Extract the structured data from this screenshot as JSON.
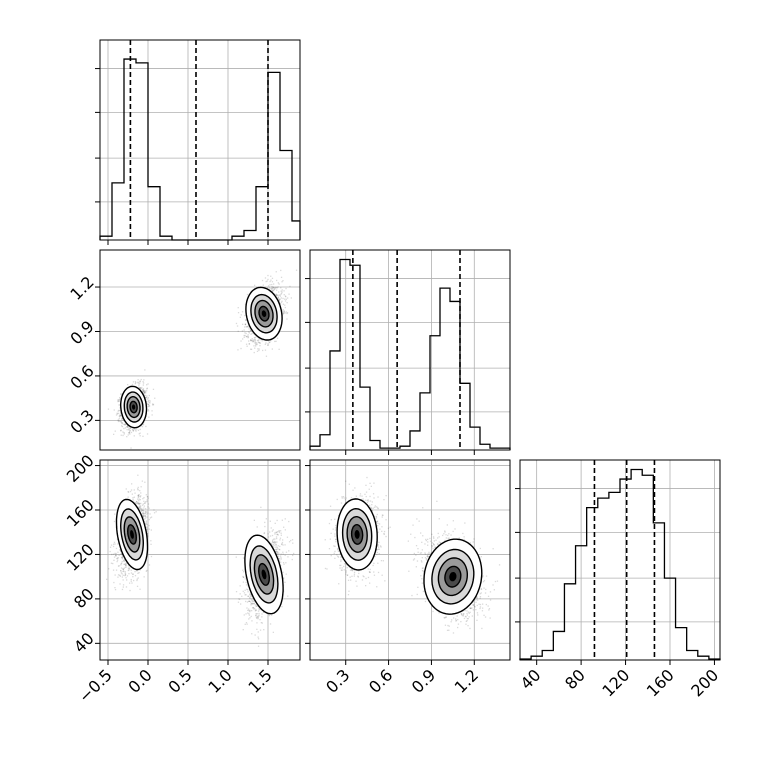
{
  "figure": {
    "type": "corner-plot",
    "colors": {
      "background": "#ffffff",
      "axes": "#000000",
      "grid": "#b0b0b0",
      "hist_line": "#000000",
      "quantile_line": "#000000",
      "scatter_point": "#555555",
      "density_dark": "#000000",
      "density_light": "#ffffff"
    }
  },
  "chart_data": [
    {
      "id": "hist-param-1",
      "type": "histogram",
      "panel": "row1-col1",
      "x_range": [
        -0.6,
        1.9
      ],
      "y_range": [
        0,
        1.05
      ],
      "bin_edges": [
        -0.6,
        -0.45,
        -0.3,
        -0.15,
        0.0,
        0.15,
        0.3,
        0.45,
        0.6,
        0.75,
        0.9,
        1.05,
        1.2,
        1.35,
        1.5,
        1.65,
        1.8,
        1.9
      ],
      "counts": [
        0.02,
        0.3,
        0.95,
        0.93,
        0.28,
        0.02,
        0.0,
        0.0,
        0.0,
        0.0,
        0.0,
        0.02,
        0.05,
        0.28,
        0.88,
        0.47,
        0.1
      ],
      "quantiles": [
        -0.22,
        0.6,
        1.5
      ],
      "grid": true,
      "x_tick_values": [
        -0.5,
        0.0,
        0.5,
        1.0,
        1.5
      ]
    },
    {
      "id": "scatter-param-1-vs-2",
      "type": "scatter",
      "panel": "row2-col1",
      "x_range": [
        -0.6,
        1.9
      ],
      "y_range": [
        0.1,
        1.45
      ],
      "clusters": [
        {
          "mean": [
            -0.18,
            0.39
          ],
          "sd": [
            0.08,
            0.07
          ],
          "rho": 0.15,
          "n": 1600
        },
        {
          "mean": [
            1.45,
            1.02
          ],
          "sd": [
            0.11,
            0.09
          ],
          "rho": 0.35,
          "n": 1600
        }
      ],
      "grid": true,
      "y_tick_labels": [
        "0.3",
        "0.6",
        "0.9",
        "1.2"
      ],
      "y_tick_values": [
        0.3,
        0.6,
        0.9,
        1.2
      ]
    },
    {
      "id": "hist-param-2",
      "type": "histogram",
      "panel": "row2-col2",
      "x_range": [
        0.05,
        1.45
      ],
      "y_range": [
        0,
        1.05
      ],
      "bin_edges": [
        0.05,
        0.12,
        0.19,
        0.26,
        0.33,
        0.4,
        0.47,
        0.54,
        0.61,
        0.68,
        0.75,
        0.82,
        0.89,
        0.96,
        1.03,
        1.1,
        1.17,
        1.24,
        1.31,
        1.38,
        1.45
      ],
      "counts": [
        0.02,
        0.08,
        0.52,
        1.0,
        0.97,
        0.33,
        0.05,
        0.01,
        0.01,
        0.02,
        0.1,
        0.3,
        0.6,
        0.85,
        0.78,
        0.35,
        0.12,
        0.03,
        0.01,
        0.01
      ],
      "quantiles": [
        0.35,
        0.66,
        1.1
      ],
      "grid": true,
      "x_tick_values": [
        0.3,
        0.6,
        0.9,
        1.2
      ]
    },
    {
      "id": "scatter-param-1-vs-3",
      "type": "scatter",
      "panel": "row3-col1",
      "x_range": [
        -0.6,
        1.9
      ],
      "y_range": [
        25,
        205
      ],
      "clusters": [
        {
          "mean": [
            -0.2,
            138
          ],
          "sd": [
            0.09,
            16
          ],
          "rho": 0.3,
          "n": 1600
        },
        {
          "mean": [
            1.45,
            102
          ],
          "sd": [
            0.11,
            18
          ],
          "rho": 0.35,
          "n": 1600
        }
      ],
      "grid": true,
      "x_tick_labels": [
        "−0.5",
        "0.0",
        "0.5",
        "1.0",
        "1.5"
      ],
      "x_tick_values": [
        -0.5,
        0.0,
        0.5,
        1.0,
        1.5
      ],
      "y_tick_labels": [
        "40",
        "80",
        "120",
        "160",
        "200"
      ],
      "y_tick_values": [
        40,
        80,
        120,
        160,
        200
      ]
    },
    {
      "id": "scatter-param-2-vs-3",
      "type": "scatter",
      "panel": "row3-col2",
      "x_range": [
        0.05,
        1.45
      ],
      "y_range": [
        25,
        205
      ],
      "clusters": [
        {
          "mean": [
            0.38,
            138
          ],
          "sd": [
            0.07,
            16
          ],
          "rho": 0.1,
          "n": 1600
        },
        {
          "mean": [
            1.05,
            100
          ],
          "sd": [
            0.1,
            17
          ],
          "rho": -0.3,
          "n": 1600
        }
      ],
      "grid": true,
      "x_tick_labels": [
        "0.3",
        "0.6",
        "0.9",
        "1.2"
      ],
      "x_tick_values": [
        0.3,
        0.6,
        0.9,
        1.2
      ],
      "y_tick_values": [
        40,
        80,
        120,
        160,
        200
      ]
    },
    {
      "id": "hist-param-3",
      "type": "histogram",
      "panel": "row3-col3",
      "x_range": [
        25,
        205
      ],
      "y_range": [
        0,
        1.05
      ],
      "bin_edges": [
        25,
        35,
        45,
        55,
        65,
        75,
        85,
        95,
        105,
        115,
        125,
        135,
        145,
        155,
        165,
        175,
        185,
        195,
        205
      ],
      "counts": [
        0.005,
        0.02,
        0.05,
        0.15,
        0.4,
        0.6,
        0.8,
        0.85,
        0.88,
        0.95,
        1.0,
        0.97,
        0.72,
        0.43,
        0.17,
        0.05,
        0.02,
        0.005
      ],
      "quantiles": [
        92,
        121,
        146
      ],
      "grid": true,
      "x_tick_labels": [
        "40",
        "80",
        "120",
        "160",
        "200"
      ],
      "x_tick_values": [
        40,
        80,
        120,
        160,
        200
      ]
    }
  ]
}
